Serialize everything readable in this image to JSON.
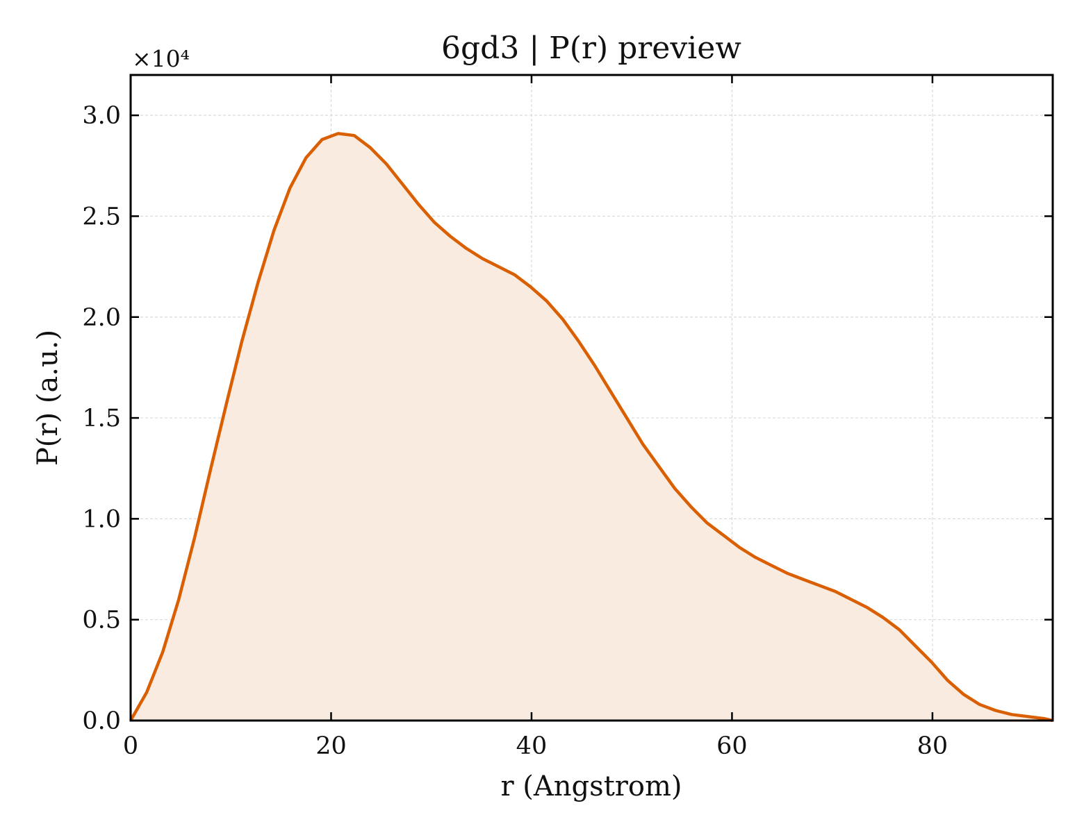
{
  "chart_data": {
    "type": "area",
    "title": "6gd3 | P(r) preview",
    "xlabel": "r (Angstrom)",
    "ylabel": "P(r) (a.u.)",
    "y_offset_label": "×10⁴",
    "xlim": [
      0,
      92
    ],
    "ylim": [
      0,
      3.2
    ],
    "x_ticks": [
      0,
      20,
      40,
      60,
      80
    ],
    "x_tick_labels": [
      "0",
      "20",
      "40",
      "60",
      "80"
    ],
    "y_ticks": [
      0,
      0.5,
      1.0,
      1.5,
      2.0,
      2.5,
      3.0
    ],
    "y_tick_labels": [
      "0.0",
      "0.5",
      "1.0",
      "1.5",
      "2.0",
      "2.5",
      "3.0"
    ],
    "grid": true,
    "line_color": "#d95f02",
    "fill_color": "#f9ebe0",
    "x": [
      0,
      1.6,
      3.2,
      4.8,
      6.4,
      8.0,
      9.6,
      11.1,
      12.7,
      14.3,
      15.9,
      17.5,
      19.1,
      20.7,
      22.3,
      23.9,
      25.5,
      27.1,
      28.7,
      30.3,
      31.9,
      33.5,
      35.1,
      36.7,
      38.3,
      39.9,
      41.5,
      43.1,
      44.7,
      46.3,
      47.9,
      49.5,
      51.1,
      52.7,
      54.3,
      55.9,
      57.5,
      59.1,
      60.7,
      62.3,
      63.9,
      65.5,
      67.1,
      68.7,
      70.3,
      71.9,
      73.5,
      75.1,
      76.7,
      78.3,
      79.9,
      81.5,
      83.1,
      84.7,
      86.3,
      87.9,
      89.5,
      91.1,
      92.0
    ],
    "y": [
      0.0,
      0.14,
      0.34,
      0.6,
      0.91,
      1.25,
      1.58,
      1.88,
      2.17,
      2.43,
      2.64,
      2.79,
      2.88,
      2.91,
      2.9,
      2.84,
      2.76,
      2.66,
      2.56,
      2.47,
      2.4,
      2.34,
      2.29,
      2.25,
      2.21,
      2.15,
      2.08,
      1.99,
      1.88,
      1.76,
      1.63,
      1.5,
      1.37,
      1.26,
      1.15,
      1.06,
      0.98,
      0.92,
      0.86,
      0.81,
      0.77,
      0.73,
      0.7,
      0.67,
      0.64,
      0.6,
      0.56,
      0.51,
      0.45,
      0.37,
      0.29,
      0.2,
      0.13,
      0.08,
      0.05,
      0.03,
      0.02,
      0.01,
      0.0
    ]
  }
}
